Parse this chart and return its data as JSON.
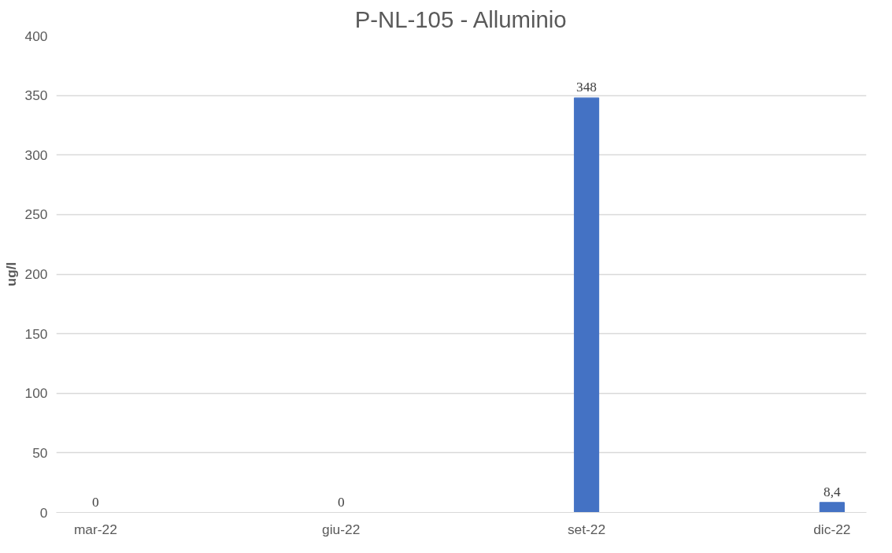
{
  "chart_data": {
    "type": "bar",
    "title": "P-NL-105 - Alluminio",
    "ylabel": "ug/l",
    "categories": [
      "mar-22",
      "giu-22",
      "set-22",
      "dic-22"
    ],
    "values": [
      0,
      0,
      348,
      8.4
    ],
    "value_labels": [
      "0",
      "0",
      "348",
      "8,4"
    ],
    "color": "#4472c4",
    "ylim": [
      0,
      400
    ],
    "yticks": [
      0,
      50,
      100,
      150,
      200,
      250,
      300,
      350,
      400
    ],
    "grid": "y"
  }
}
